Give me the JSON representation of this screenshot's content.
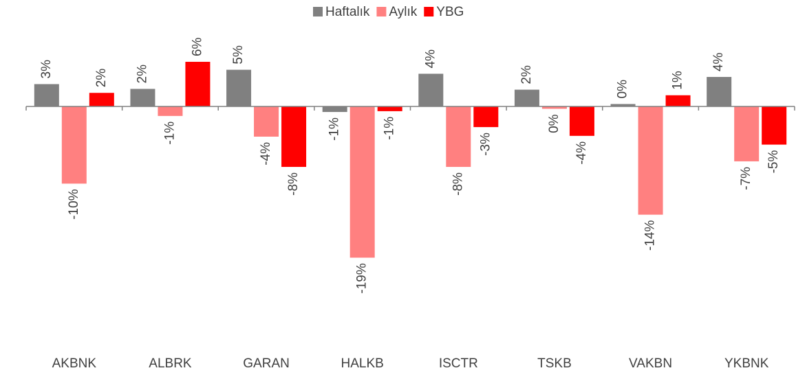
{
  "chart_data": {
    "type": "bar",
    "categories": [
      "AKBNK",
      "ALBRK",
      "GARAN",
      "HALKB",
      "ISCTR",
      "TSKB",
      "VAKBN",
      "YKBNK"
    ],
    "series": [
      {
        "name": "Haftalık",
        "color": "#808080",
        "values": [
          2.8,
          2.2,
          4.6,
          -0.7,
          4.1,
          2.1,
          0.3,
          3.7
        ],
        "value_labels": [
          "3%",
          "2%",
          "5%",
          "-1%",
          "4%",
          "2%",
          "0%",
          "4%"
        ]
      },
      {
        "name": "Aylık",
        "color": "#ff8080",
        "values": [
          -9.7,
          -1.2,
          -3.8,
          -19.0,
          -7.6,
          -0.3,
          -13.6,
          -6.9
        ],
        "value_labels": [
          "-10%",
          "-1%",
          "-4%",
          "-19%",
          "-8%",
          "0%",
          "-14%",
          "-7%"
        ]
      },
      {
        "name": "YBG",
        "color": "#ff0000",
        "values": [
          1.7,
          5.6,
          -7.6,
          -0.6,
          -2.6,
          -3.7,
          1.4,
          -4.8
        ],
        "value_labels": [
          "2%",
          "6%",
          "-8%",
          "-1%",
          "-3%",
          "-4%",
          "1%",
          "-5%"
        ]
      }
    ],
    "ylim": [
      -27,
      10
    ],
    "legend": "top"
  }
}
